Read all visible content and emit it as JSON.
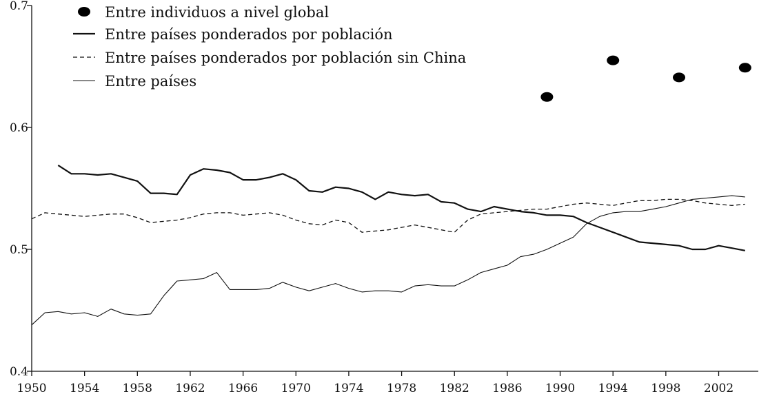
{
  "chart_data": {
    "type": "line",
    "title": "",
    "xlabel": "",
    "ylabel": "",
    "xlim": [
      1950,
      2005
    ],
    "ylim": [
      0.4,
      0.7
    ],
    "xticks": [
      1950,
      1954,
      1958,
      1962,
      1966,
      1970,
      1974,
      1978,
      1982,
      1986,
      1990,
      1994,
      1998,
      2002
    ],
    "xtick_labels": [
      "1950",
      "1954",
      "1958",
      "1962",
      "1966",
      "1970",
      "1974",
      "1978",
      "1982",
      "1986",
      "1990",
      "1994",
      "1998",
      "2002"
    ],
    "yticks": [
      0.4,
      0.5,
      0.6,
      0.7
    ],
    "ytick_labels": [
      "0.4",
      "0.5",
      "0.6",
      "0.7"
    ],
    "grid": false,
    "legend_position": "top-center",
    "series": [
      {
        "name": "Entre individuos a nivel global",
        "style": "dots",
        "color": "#000000",
        "x": [
          1989,
          1994,
          1999,
          2004
        ],
        "y": [
          0.625,
          0.655,
          0.641,
          0.649
        ]
      },
      {
        "name": "Entre países ponderados por población",
        "style": "thick-solid",
        "color": "#111111",
        "x": [
          1952,
          1953,
          1954,
          1955,
          1956,
          1957,
          1958,
          1959,
          1960,
          1961,
          1962,
          1963,
          1964,
          1965,
          1966,
          1967,
          1968,
          1969,
          1970,
          1971,
          1972,
          1973,
          1974,
          1975,
          1976,
          1977,
          1978,
          1979,
          1980,
          1981,
          1982,
          1983,
          1984,
          1985,
          1986,
          1987,
          1988,
          1989,
          1990,
          1991,
          1992,
          1993,
          1994,
          1995,
          1996,
          1997,
          1998,
          1999,
          2000,
          2001,
          2002,
          2003,
          2004
        ],
        "y": [
          0.569,
          0.562,
          0.562,
          0.561,
          0.562,
          0.559,
          0.556,
          0.546,
          0.546,
          0.545,
          0.561,
          0.566,
          0.565,
          0.563,
          0.557,
          0.557,
          0.559,
          0.562,
          0.557,
          0.548,
          0.547,
          0.551,
          0.55,
          0.547,
          0.541,
          0.547,
          0.545,
          0.544,
          0.545,
          0.539,
          0.538,
          0.533,
          0.531,
          0.535,
          0.533,
          0.531,
          0.53,
          0.528,
          0.528,
          0.527,
          0.522,
          0.518,
          0.514,
          0.51,
          0.506,
          0.505,
          0.504,
          0.503,
          0.5,
          0.5,
          0.503,
          0.501,
          0.499
        ]
      },
      {
        "name": "Entre países ponderados por población sin China",
        "style": "dashed",
        "color": "#111111",
        "x": [
          1950,
          1951,
          1952,
          1953,
          1954,
          1955,
          1956,
          1957,
          1958,
          1959,
          1960,
          1961,
          1962,
          1963,
          1964,
          1965,
          1966,
          1967,
          1968,
          1969,
          1970,
          1971,
          1972,
          1973,
          1974,
          1975,
          1976,
          1977,
          1978,
          1979,
          1980,
          1981,
          1982,
          1983,
          1984,
          1985,
          1986,
          1987,
          1988,
          1989,
          1990,
          1991,
          1992,
          1993,
          1994,
          1995,
          1996,
          1997,
          1998,
          1999,
          2000,
          2001,
          2002,
          2003,
          2004
        ],
        "y": [
          0.525,
          0.53,
          0.529,
          0.528,
          0.527,
          0.528,
          0.529,
          0.529,
          0.526,
          0.522,
          0.523,
          0.524,
          0.526,
          0.529,
          0.53,
          0.53,
          0.528,
          0.529,
          0.53,
          0.528,
          0.524,
          0.521,
          0.52,
          0.524,
          0.522,
          0.514,
          0.515,
          0.516,
          0.518,
          0.52,
          0.518,
          0.516,
          0.514,
          0.524,
          0.529,
          0.53,
          0.531,
          0.532,
          0.533,
          0.533,
          0.535,
          0.537,
          0.538,
          0.537,
          0.536,
          0.538,
          0.54,
          0.54,
          0.541,
          0.541,
          0.54,
          0.538,
          0.537,
          0.536,
          0.537
        ]
      },
      {
        "name": "Entre países",
        "style": "thin-solid",
        "color": "#111111",
        "x": [
          1950,
          1951,
          1952,
          1953,
          1954,
          1955,
          1956,
          1957,
          1958,
          1959,
          1960,
          1961,
          1962,
          1963,
          1964,
          1965,
          1966,
          1967,
          1968,
          1969,
          1970,
          1971,
          1972,
          1973,
          1974,
          1975,
          1976,
          1977,
          1978,
          1979,
          1980,
          1981,
          1982,
          1983,
          1984,
          1985,
          1986,
          1987,
          1988,
          1989,
          1990,
          1991,
          1992,
          1993,
          1994,
          1995,
          1996,
          1997,
          1998,
          1999,
          2000,
          2001,
          2002,
          2003,
          2004
        ],
        "y": [
          0.438,
          0.448,
          0.449,
          0.447,
          0.448,
          0.445,
          0.451,
          0.447,
          0.446,
          0.447,
          0.462,
          0.474,
          0.475,
          0.476,
          0.481,
          0.467,
          0.467,
          0.467,
          0.468,
          0.473,
          0.469,
          0.466,
          0.469,
          0.472,
          0.468,
          0.465,
          0.466,
          0.466,
          0.465,
          0.47,
          0.471,
          0.47,
          0.47,
          0.475,
          0.481,
          0.484,
          0.487,
          0.494,
          0.496,
          0.5,
          0.505,
          0.51,
          0.521,
          0.527,
          0.53,
          0.531,
          0.531,
          0.533,
          0.535,
          0.538,
          0.541,
          0.542,
          0.543,
          0.544,
          0.543
        ]
      }
    ]
  }
}
